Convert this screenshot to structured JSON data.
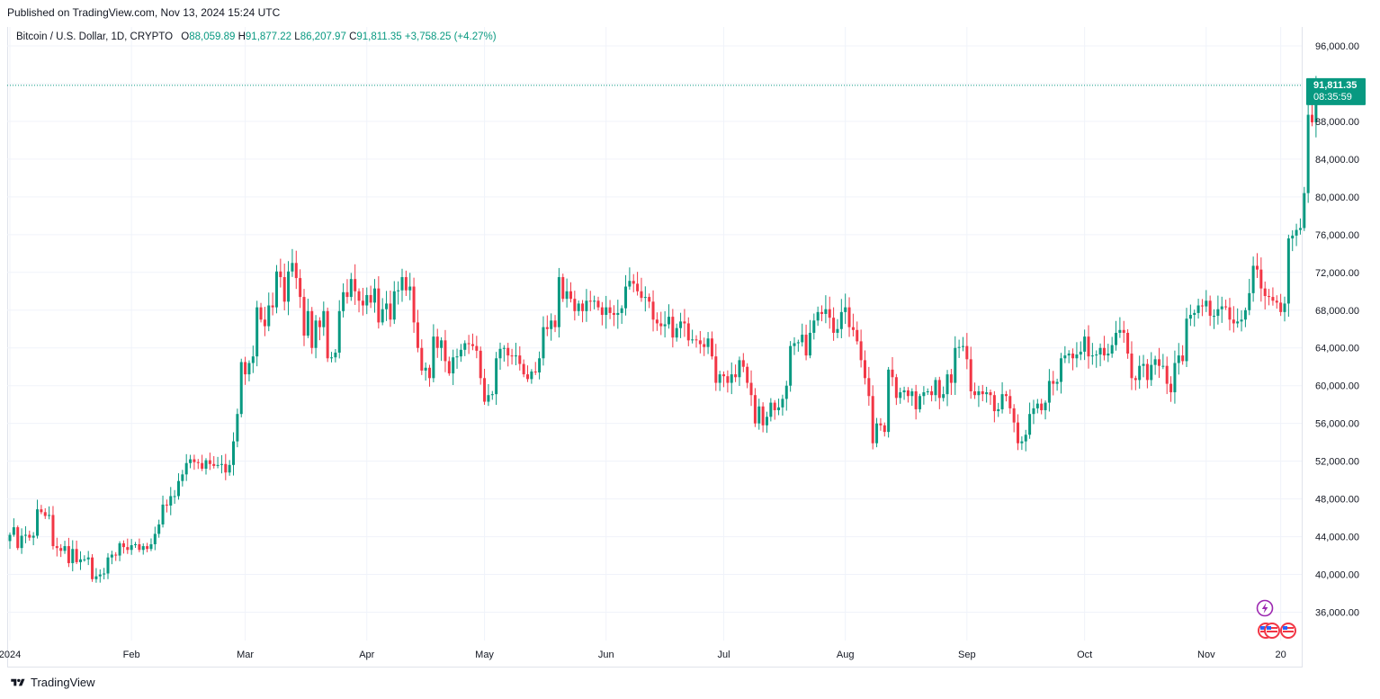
{
  "header": {
    "published": "Published on TradingView.com, Nov 13, 2024 15:24 UTC"
  },
  "legend": {
    "symbol": "Bitcoin / U.S. Dollar, 1D, CRYPTO",
    "o_label": "O",
    "o_value": "88,059.89",
    "h_label": "H",
    "h_value": "91,877.22",
    "l_label": "L",
    "l_value": "86,207.97",
    "c_label": "C",
    "c_value": "91,811.35",
    "change": "+3,758.25 (+4.27%)"
  },
  "last_price": {
    "price": "91,811.35",
    "countdown": "08:35:59",
    "value": 91811.35
  },
  "footer": {
    "brand": "TradingView"
  },
  "colors": {
    "up": "#089981",
    "down": "#f23645",
    "grid": "#f0f3fa",
    "axis_text": "#131722"
  },
  "chart_data": {
    "type": "candlestick",
    "y_axis_side": "right",
    "ylim": [
      33000,
      98000
    ],
    "y_ticks": [
      "96,000.00",
      "92,000.00",
      "88,000.00",
      "84,000.00",
      "80,000.00",
      "76,000.00",
      "72,000.00",
      "68,000.00",
      "64,000.00",
      "60,000.00",
      "56,000.00",
      "52,000.00",
      "48,000.00",
      "44,000.00",
      "40,000.00",
      "36,000.00"
    ],
    "y_tick_values": [
      96000,
      92000,
      88000,
      84000,
      80000,
      76000,
      72000,
      68000,
      64000,
      60000,
      56000,
      52000,
      48000,
      44000,
      40000,
      36000
    ],
    "x_tick_labels": [
      "2024",
      "Feb",
      "Mar",
      "Apr",
      "May",
      "Jun",
      "Jul",
      "Aug",
      "Sep",
      "Oct",
      "Nov",
      "20"
    ],
    "x_tick_days": [
      0,
      31,
      60,
      91,
      121,
      152,
      182,
      213,
      244,
      274,
      305,
      324
    ],
    "x_start": "2024-01-01",
    "daily_closes": [
      44200,
      45000,
      42800,
      44100,
      44200,
      43900,
      44100,
      46900,
      46600,
      46200,
      46300,
      43000,
      42800,
      42500,
      43000,
      41200,
      42700,
      41300,
      41600,
      41600,
      41800,
      39500,
      39800,
      40000,
      40100,
      41800,
      42100,
      42000,
      43300,
      42900,
      42600,
      43100,
      43200,
      42600,
      43000,
      42700,
      43200,
      44300,
      45300,
      47400,
      47300,
      48300,
      48300,
      49900,
      50600,
      51800,
      52200,
      51900,
      51800,
      51200,
      52100,
      51700,
      51500,
      51600,
      51700,
      50800,
      51600,
      54100,
      57000,
      62500,
      61200,
      62400,
      63100,
      68300,
      67000,
      66300,
      68500,
      68300,
      72100,
      71500,
      68900,
      72100,
      73000,
      71400,
      69400,
      65300,
      67900,
      64000,
      66900,
      66200,
      67900,
      62900,
      63000,
      63500,
      67900,
      69900,
      69400,
      71300,
      70000,
      69000,
      68500,
      69600,
      68800,
      70300,
      66700,
      68100,
      68700,
      67000,
      70000,
      70100,
      71500,
      70100,
      70500,
      66700,
      64000,
      61600,
      61900,
      60800,
      65200,
      64000,
      64800,
      62600,
      61300,
      63000,
      63100,
      63800,
      64500,
      64400,
      64200,
      63700,
      60800,
      58300,
      59000,
      59100,
      62900,
      63900,
      64000,
      63200,
      63100,
      63200,
      62300,
      61200,
      60700,
      61500,
      61400,
      62900,
      66200,
      66000,
      66900,
      66200,
      71500,
      69200,
      70000,
      69200,
      67900,
      68700,
      67900,
      69000,
      68900,
      69000,
      68300,
      67500,
      68300,
      67700,
      67500,
      67700,
      68200,
      70500,
      71100,
      70800,
      70000,
      69300,
      69400,
      68900,
      67000,
      66600,
      66300,
      66500,
      67300,
      65100,
      66100,
      66800,
      66600,
      64800,
      64900,
      64800,
      64400,
      64100,
      65000,
      63100,
      60300,
      61200,
      61000,
      60300,
      61200,
      60900,
      62700,
      62000,
      60300,
      59000,
      56000,
      57800,
      55800,
      56700,
      58200,
      57400,
      57700,
      58600,
      60000,
      64200,
      64500,
      64600,
      65400,
      63200,
      65600,
      66900,
      67800,
      67600,
      68100,
      67200,
      65600,
      66000,
      67800,
      68300,
      66200,
      65900,
      64700,
      62700,
      60800,
      58900,
      53900,
      56000,
      55800,
      55100,
      61700,
      60900,
      58700,
      59300,
      59500,
      58900,
      59400,
      57500,
      58900,
      59300,
      59400,
      59000,
      60600,
      58700,
      59100,
      61200,
      60300,
      64000,
      64100,
      64200,
      62800,
      59400,
      59000,
      59400,
      59100,
      59300,
      59000,
      57300,
      57500,
      59100,
      58900,
      57600,
      56100,
      53900,
      54100,
      54800,
      57000,
      57600,
      58100,
      57400,
      58200,
      60500,
      60200,
      60400,
      62900,
      63200,
      63400,
      62900,
      63300,
      63600,
      65200,
      63100,
      63200,
      63300,
      64000,
      63200,
      63400,
      64300,
      65600,
      65900,
      65600,
      63400,
      60800,
      60600,
      62100,
      62300,
      60600,
      62200,
      62800,
      62100,
      62100,
      60200,
      59300,
      62400,
      63200,
      62600,
      67100,
      67500,
      67700,
      68500,
      68400,
      69000,
      67400,
      67400,
      68100,
      68400,
      68300,
      67000,
      66600,
      66800,
      67000,
      68000,
      69800,
      72700,
      72300,
      70300,
      69500,
      69400,
      69000,
      68800,
      67800,
      68700,
      75600,
      75900,
      76500,
      76700,
      80400,
      88700,
      87900,
      91811
    ]
  }
}
